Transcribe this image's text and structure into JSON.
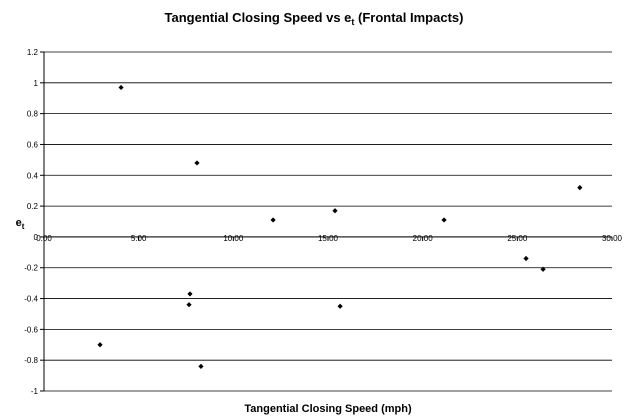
{
  "chart_data": {
    "type": "scatter",
    "title": [
      "Tangential Closing Speed vs e",
      "t",
      " (Frontal Impacts)"
    ],
    "xlabel": "Tangential Closing Speed (mph)",
    "ylabel": [
      "e",
      "t"
    ],
    "color": "#000000",
    "grid": true,
    "xlim": [
      0,
      30
    ],
    "xticks": [
      {
        "value": 0,
        "label": "0.00"
      },
      {
        "value": 5,
        "label": "5.00"
      },
      {
        "value": 10,
        "label": "10.00"
      },
      {
        "value": 15,
        "label": "15.00"
      },
      {
        "value": 20,
        "label": "20.00"
      },
      {
        "value": 25,
        "label": "25.00"
      },
      {
        "value": 30,
        "label": "30.00"
      }
    ],
    "ylim": [
      -1,
      1.2
    ],
    "yticks": [
      -1,
      -0.8,
      -0.6,
      -0.4,
      -0.2,
      0,
      0.2,
      0.4,
      0.6,
      0.8,
      1,
      1.2
    ],
    "x": [
      4.07,
      8.08,
      12.1,
      15.37,
      21.13,
      28.3,
      25.46,
      26.36,
      7.71,
      7.66,
      15.64,
      2.96,
      8.29
    ],
    "values": [
      0.97,
      0.48,
      0.11,
      0.17,
      0.11,
      0.32,
      -0.14,
      -0.21,
      -0.37,
      -0.44,
      -0.45,
      -0.7,
      -0.84
    ]
  }
}
